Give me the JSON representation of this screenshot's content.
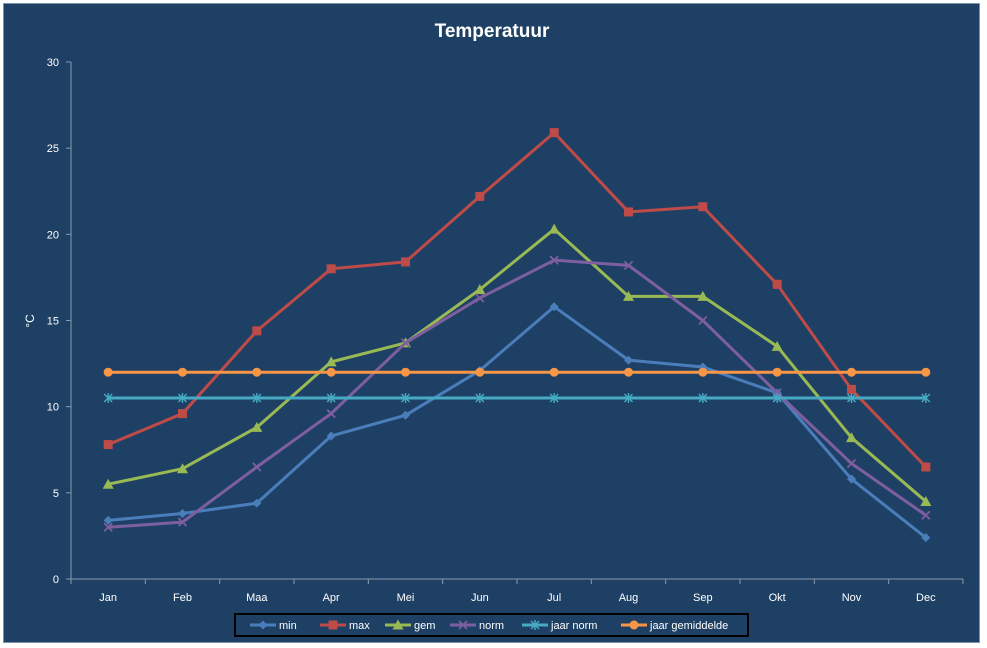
{
  "chart_data": {
    "type": "line",
    "title": "Temperatuur",
    "xlabel": "",
    "ylabel": "°C",
    "ylim": [
      0,
      30
    ],
    "yticks": [
      0,
      5,
      10,
      15,
      20,
      25,
      30
    ],
    "grid": false,
    "legend": "bottom",
    "categories": [
      "Jan",
      "Feb",
      "Maa",
      "Apr",
      "Mei",
      "Jun",
      "Jul",
      "Aug",
      "Sep",
      "Okt",
      "Nov",
      "Dec"
    ],
    "series": [
      {
        "name": "min",
        "color": "#4a7ebb",
        "marker": "diamond",
        "values": [
          3.4,
          3.8,
          4.4,
          8.3,
          9.5,
          12.1,
          15.8,
          12.7,
          12.3,
          10.8,
          5.8,
          2.4
        ]
      },
      {
        "name": "max",
        "color": "#be4b48",
        "marker": "square",
        "values": [
          7.8,
          9.6,
          14.4,
          18.0,
          18.4,
          22.2,
          25.9,
          21.3,
          21.6,
          17.1,
          11.0,
          6.5
        ]
      },
      {
        "name": "gem",
        "color": "#98b954",
        "marker": "triangle",
        "values": [
          5.5,
          6.4,
          8.8,
          12.6,
          13.7,
          16.8,
          20.3,
          16.4,
          16.4,
          13.5,
          8.2,
          4.5
        ]
      },
      {
        "name": "norm",
        "color": "#7d5fa0",
        "marker": "x",
        "values": [
          3.0,
          3.3,
          6.5,
          9.6,
          13.7,
          16.3,
          18.5,
          18.2,
          15.0,
          10.8,
          6.7,
          3.7
        ]
      },
      {
        "name": "jaar norm",
        "color": "#46aac5",
        "marker": "star",
        "values": [
          10.5,
          10.5,
          10.5,
          10.5,
          10.5,
          10.5,
          10.5,
          10.5,
          10.5,
          10.5,
          10.5,
          10.5
        ]
      },
      {
        "name": "jaar gemiddelde",
        "color": "#f79646",
        "marker": "circle",
        "values": [
          12.0,
          12.0,
          12.0,
          12.0,
          12.0,
          12.0,
          12.0,
          12.0,
          12.0,
          12.0,
          12.0,
          12.0
        ]
      }
    ]
  }
}
